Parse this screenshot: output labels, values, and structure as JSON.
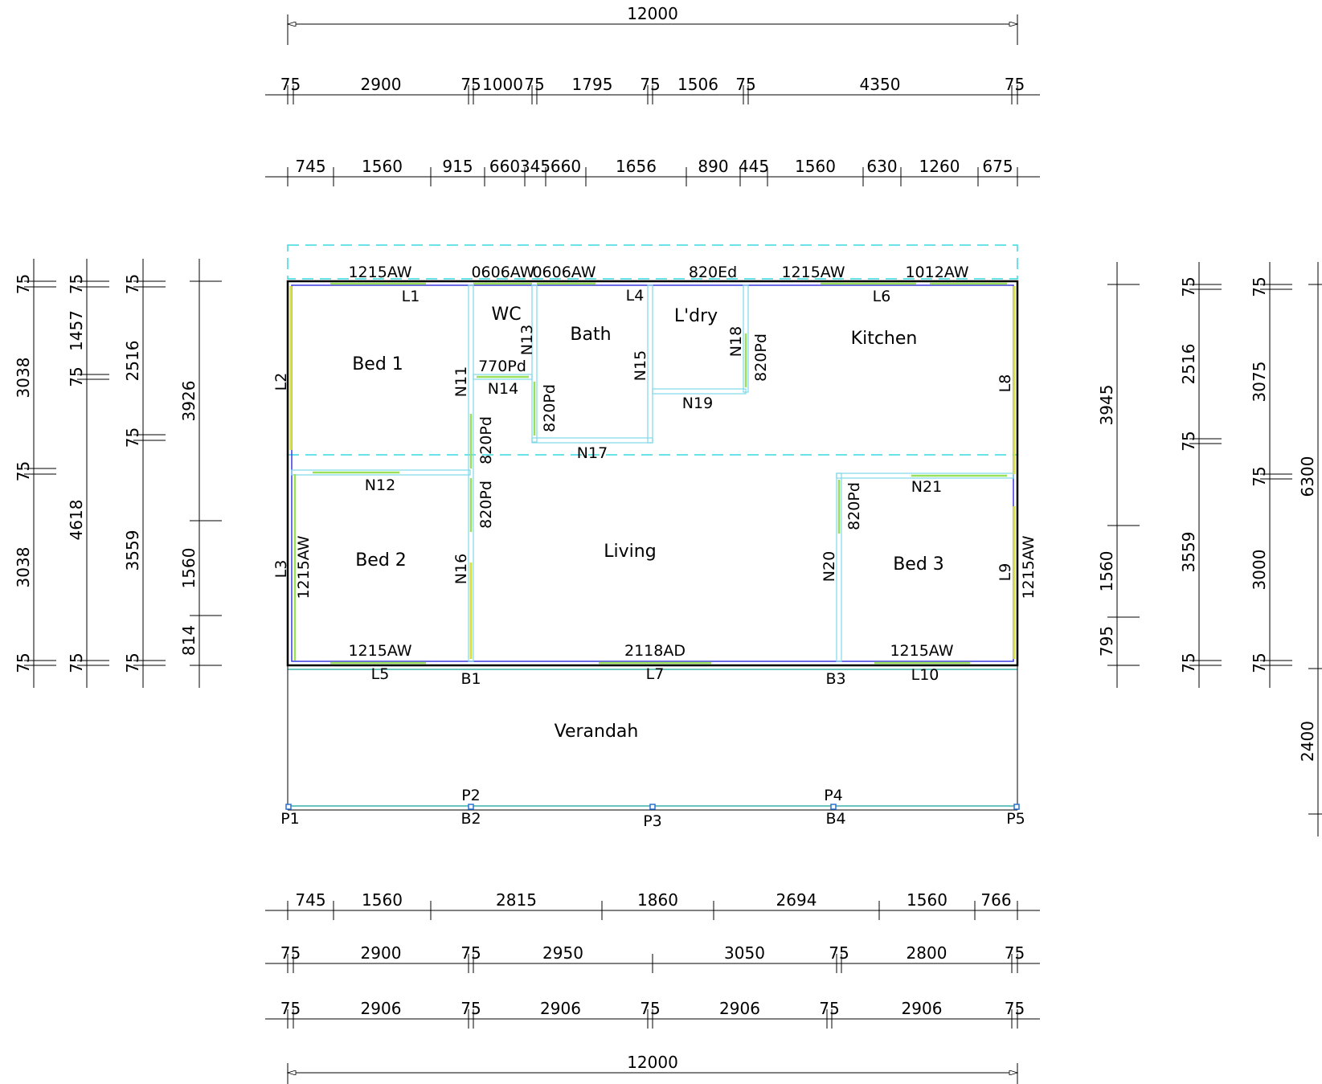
{
  "overall": {
    "top": "12000",
    "bottom": "12000"
  },
  "top_rows": [
    [
      "75",
      "2900",
      "75",
      "1000",
      "75",
      "1795",
      "75",
      "1506",
      "75",
      "4350",
      "75"
    ],
    [
      "745",
      "1560",
      "915",
      "660",
      "345",
      "660",
      "1656",
      "890",
      "445",
      "1560",
      "630",
      "1260",
      "675"
    ]
  ],
  "bottom_rows": [
    [
      "745",
      "1560",
      "2815",
      "1860",
      "2694",
      "1560",
      "766"
    ],
    [
      "75",
      "2900",
      "75",
      "2950",
      "3050",
      "75",
      "2800",
      "75"
    ],
    [
      "75",
      "2906",
      "75",
      "2906",
      "75",
      "2906",
      "75",
      "2906",
      "75"
    ]
  ],
  "left_cols": [
    [
      "75",
      "3038",
      "75",
      "3038",
      "75"
    ],
    [
      "75",
      "1457",
      "75",
      "4618",
      "75"
    ],
    [
      "75",
      "2516",
      "75",
      "3559",
      "75"
    ],
    [
      "3926",
      "1560",
      "814"
    ]
  ],
  "right_cols": [
    [
      "3945",
      "1560",
      "795"
    ],
    [
      "75",
      "2516",
      "75",
      "3559",
      "75"
    ],
    [
      "75",
      "3075",
      "75",
      "3000",
      "75"
    ],
    [
      "6300",
      "2400"
    ]
  ],
  "rooms": {
    "bed1": "Bed 1",
    "wc": "WC",
    "bath": "Bath",
    "ldry": "L'dry",
    "kitchen": "Kitchen",
    "bed2": "Bed 2",
    "living": "Living",
    "bed3": "Bed 3",
    "verandah": "Verandah"
  },
  "openings": {
    "top_w1": "1215AW",
    "top_w2": "0606AW",
    "top_w3": "0606AW",
    "top_d1": "820Ed",
    "top_w4": "1215AW",
    "top_w5": "1012AW",
    "d770": "770Pd",
    "d820_n13": "820Pd",
    "d820_n11": "820Pd",
    "d820_n16": "820Pd",
    "d820_n18": "820Pd",
    "d820_n20": "820Pd",
    "w_l3": "1215AW",
    "w_l9": "1215AW",
    "bot_w1": "1215AW",
    "bot_d1": "2118AD",
    "bot_w2": "1215AW"
  },
  "walls": {
    "L1": "L1",
    "L2": "L2",
    "L3": "L3",
    "L4": "L4",
    "L5": "L5",
    "L6": "L6",
    "L7": "L7",
    "L8": "L8",
    "L9": "L9",
    "L10": "L10",
    "N11": "N11",
    "N12": "N12",
    "N13": "N13",
    "N14": "N14",
    "N15": "N15",
    "N16": "N16",
    "N17": "N17",
    "N18": "N18",
    "N19": "N19",
    "N20": "N20",
    "N21": "N21"
  },
  "posts": {
    "P1": "P1",
    "P2": "P2",
    "P3": "P3",
    "P4": "P4",
    "P5": "P5",
    "B1": "B1",
    "B2": "B2",
    "B3": "B3",
    "B4": "B4"
  }
}
